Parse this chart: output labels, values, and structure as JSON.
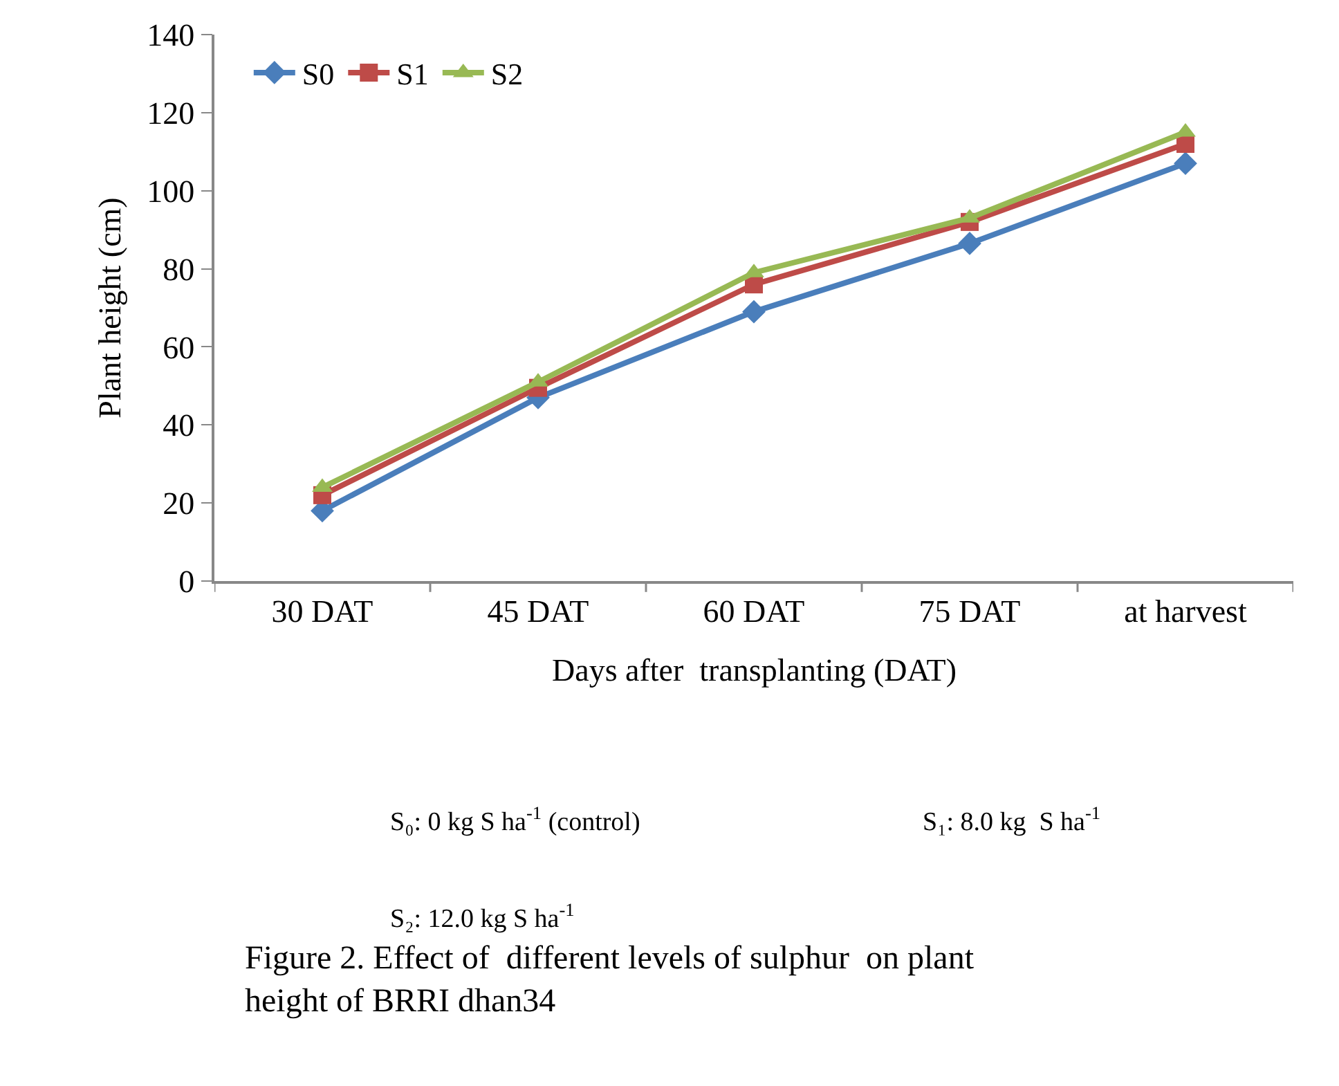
{
  "chart_data": {
    "type": "line",
    "title": "Figure 2. Effect of  different levels of sulphur  on plant height of BRRI dhan34",
    "xlabel": "Days after  transplanting (DAT)",
    "ylabel": "Plant height (cm)",
    "categories": [
      "30 DAT",
      "45 DAT",
      "60 DAT",
      "75 DAT",
      "at harvest"
    ],
    "series": [
      {
        "name": "S0",
        "color": "#4a7ebb",
        "marker": "diamond",
        "values": [
          18,
          47,
          69,
          86.5,
          107
        ]
      },
      {
        "name": "S1",
        "color": "#be4b48",
        "marker": "square",
        "values": [
          22,
          49.5,
          76,
          92,
          112
        ]
      },
      {
        "name": "S2",
        "color": "#98b954",
        "marker": "triangle",
        "values": [
          24,
          51,
          79,
          93,
          115
        ]
      }
    ],
    "ylim": [
      0,
      140
    ],
    "yticks": [
      0,
      20,
      40,
      60,
      80,
      100,
      120,
      140
    ],
    "grid": false,
    "legend": "top left",
    "annotations": [
      "S₀: 0 kg S ha$^{-1}$ (control)",
      "S₁: 8.0 kg  S ha$^{-1}$",
      "S₂: 12.0 kg S ha$^{-1}$"
    ]
  }
}
